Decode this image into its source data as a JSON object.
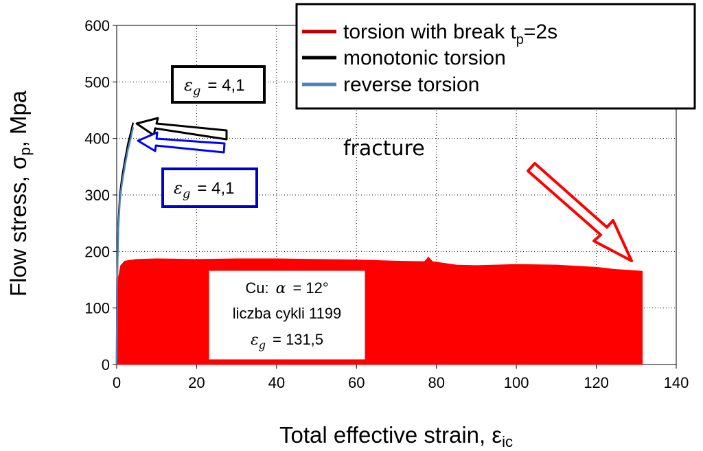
{
  "chart_data": {
    "type": "area",
    "xlabel": "Total effective strain, εic",
    "xlabel_main": "Total effective strain, ε",
    "xlabel_sub": "ic",
    "ylabel": "Flow stress, σp, Mpa",
    "ylabel_main": "Flow stress, σ",
    "ylabel_sub": "p",
    "ylabel_tail": ", Mpa",
    "xlim": [
      0,
      140
    ],
    "ylim": [
      0,
      600
    ],
    "xticks": [
      0,
      20,
      40,
      60,
      80,
      100,
      120,
      140
    ],
    "yticks": [
      0,
      100,
      200,
      300,
      400,
      500,
      600
    ],
    "grid": "dotted",
    "legend_position": "top-right",
    "series": [
      {
        "name": "torsion with break tp=2s",
        "name_main": "torsion with break t",
        "name_sub": "p",
        "name_tail": "=2s",
        "color": "#ff0000",
        "x": [
          0,
          0.3,
          1,
          2,
          5,
          10,
          20,
          30,
          40,
          50,
          60,
          70,
          77,
          78,
          79,
          85,
          90,
          100,
          110,
          120,
          125,
          130,
          131.5
        ],
        "y": [
          0,
          150,
          175,
          183,
          186,
          187,
          186,
          187,
          187,
          186,
          185,
          183,
          182,
          190,
          182,
          176,
          175,
          177,
          176,
          172,
          168,
          166,
          165
        ]
      },
      {
        "name": "monotonic torsion",
        "color": "#000000",
        "x": [
          0,
          0.1,
          0.4,
          0.8,
          1.3,
          2,
          2.8,
          3.5,
          4.1
        ],
        "y": [
          0,
          150,
          250,
          300,
          330,
          360,
          390,
          410,
          428
        ]
      },
      {
        "name": "reverse torsion",
        "color": "#4f81bd",
        "x": [
          0,
          0.1,
          0.4,
          0.8,
          1.3,
          2,
          2.8,
          3.5,
          4.1
        ],
        "y": [
          0,
          145,
          240,
          290,
          320,
          350,
          380,
          400,
          420
        ]
      }
    ]
  },
  "annotations": {
    "eps_sym": "ε",
    "eps_sub": "g",
    "monotonic_value": "= 4,1",
    "reverse_value": "= 4,1",
    "fracture": "fracture",
    "cu_line1_pre": "Cu:",
    "alpha_sym": "α",
    "cu_line1_post": "= 12°",
    "cu_line2": "liczba cykli 1199",
    "cu_line3_value": "= 131,5"
  }
}
